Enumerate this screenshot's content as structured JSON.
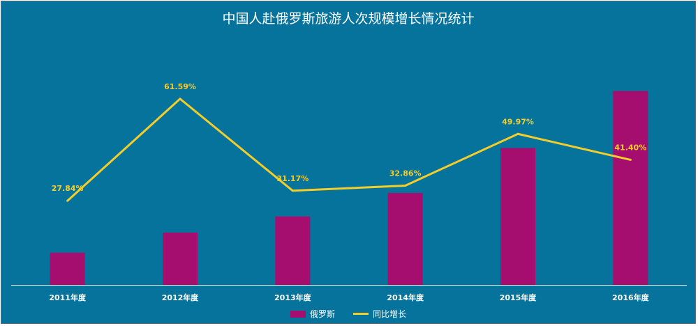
{
  "chart_data": {
    "type": "bar",
    "title": "中国人赴俄罗斯旅游人次规模增长情况统计",
    "categories": [
      "2011年度",
      "2012年度",
      "2013年度",
      "2014年度",
      "2015年度",
      "2016年度"
    ],
    "series": [
      {
        "name": "俄罗斯",
        "type": "bar",
        "color": "#a50e6e",
        "values": [
          48,
          78,
          102,
          137,
          204,
          289
        ]
      },
      {
        "name": "同比增长",
        "type": "line",
        "color": "#f3cd2a",
        "values": [
          27.84,
          61.59,
          31.17,
          32.86,
          49.97,
          41.4
        ],
        "labels": [
          "27.84%",
          "61.59%",
          "31.17%",
          "32.86%",
          "49.97%",
          "41.40%"
        ]
      }
    ],
    "ylim_bar": [
      0,
      300
    ],
    "ylim_line": [
      0,
      80
    ],
    "grid": false,
    "legend_position": "bottom",
    "colors": {
      "background": "#06739c",
      "axis": "#dfeaf0",
      "text": "#ffffff",
      "line_label": "#f3cd2a"
    }
  }
}
